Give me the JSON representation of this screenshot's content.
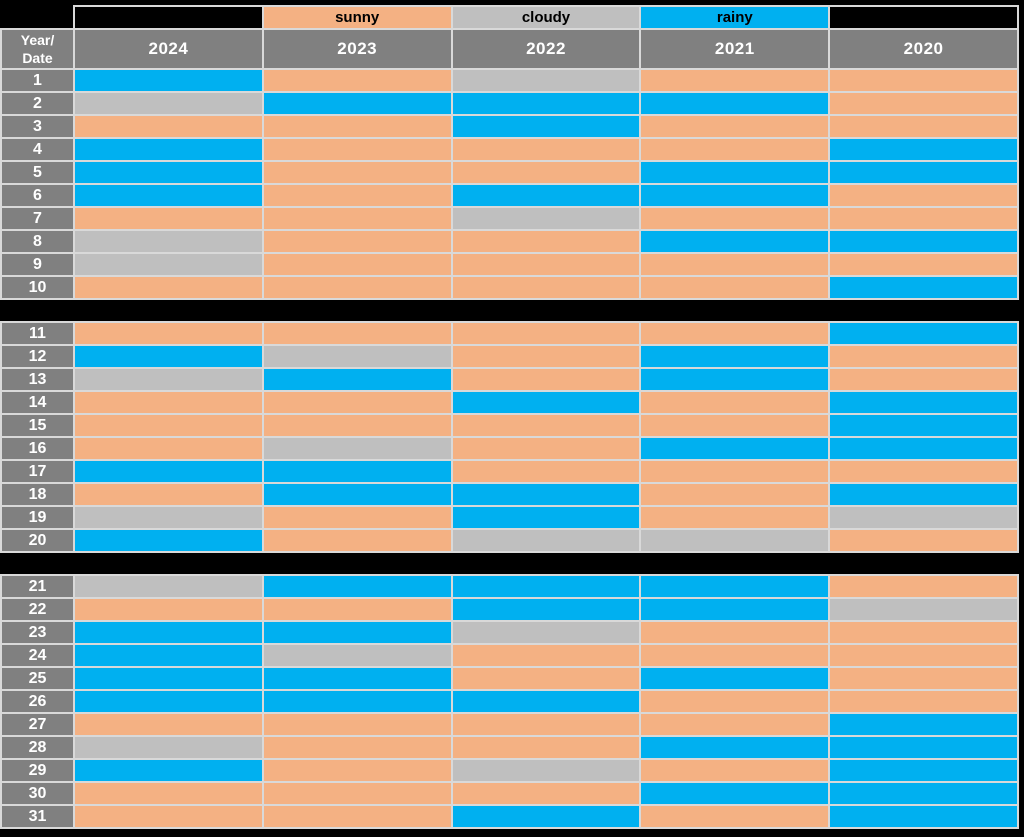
{
  "colors": {
    "sunny": "#F4B183",
    "cloudy": "#BFBFBF",
    "rainy": "#00B0F0",
    "header_bg": "#808080",
    "header_text": "#FFFFFF",
    "page_bg": "#000000",
    "grid_line": "#D9D9D9",
    "legend_text": "#000000",
    "legend_empty_bg": "#000000"
  },
  "table": {
    "corner_label_line1": "Year/",
    "corner_label_line2": "Date"
  },
  "legend": {
    "cells": [
      {
        "label": "",
        "weather": ""
      },
      {
        "label": "sunny",
        "weather": "sunny"
      },
      {
        "label": "cloudy",
        "weather": "cloudy"
      },
      {
        "label": "rainy",
        "weather": "rainy"
      },
      {
        "label": "",
        "weather": ""
      }
    ]
  },
  "chart_data": {
    "type": "heatmap",
    "row_label_header": "Year/Date",
    "columns": [
      "2024",
      "2023",
      "2022",
      "2021",
      "2020"
    ],
    "legend": [
      {
        "label": "sunny",
        "color": "#F4B183"
      },
      {
        "label": "cloudy",
        "color": "#BFBFBF"
      },
      {
        "label": "rainy",
        "color": "#00B0F0"
      }
    ],
    "row_groups": [
      [
        1,
        10
      ],
      [
        11,
        20
      ],
      [
        21,
        31
      ]
    ],
    "rows": [
      {
        "date": "1",
        "values": [
          "rainy",
          "sunny",
          "cloudy",
          "sunny",
          "sunny"
        ]
      },
      {
        "date": "2",
        "values": [
          "cloudy",
          "rainy",
          "rainy",
          "rainy",
          "sunny"
        ]
      },
      {
        "date": "3",
        "values": [
          "sunny",
          "sunny",
          "rainy",
          "sunny",
          "sunny"
        ]
      },
      {
        "date": "4",
        "values": [
          "rainy",
          "sunny",
          "sunny",
          "sunny",
          "rainy"
        ]
      },
      {
        "date": "5",
        "values": [
          "rainy",
          "sunny",
          "sunny",
          "rainy",
          "rainy"
        ]
      },
      {
        "date": "6",
        "values": [
          "rainy",
          "sunny",
          "rainy",
          "rainy",
          "sunny"
        ]
      },
      {
        "date": "7",
        "values": [
          "sunny",
          "sunny",
          "cloudy",
          "sunny",
          "sunny"
        ]
      },
      {
        "date": "8",
        "values": [
          "cloudy",
          "sunny",
          "sunny",
          "rainy",
          "rainy"
        ]
      },
      {
        "date": "9",
        "values": [
          "cloudy",
          "sunny",
          "sunny",
          "sunny",
          "sunny"
        ]
      },
      {
        "date": "10",
        "values": [
          "sunny",
          "sunny",
          "sunny",
          "sunny",
          "rainy"
        ]
      },
      {
        "date": "11",
        "values": [
          "sunny",
          "sunny",
          "sunny",
          "sunny",
          "rainy"
        ]
      },
      {
        "date": "12",
        "values": [
          "rainy",
          "cloudy",
          "sunny",
          "rainy",
          "sunny"
        ]
      },
      {
        "date": "13",
        "values": [
          "cloudy",
          "rainy",
          "sunny",
          "rainy",
          "sunny"
        ]
      },
      {
        "date": "14",
        "values": [
          "sunny",
          "sunny",
          "rainy",
          "sunny",
          "rainy"
        ]
      },
      {
        "date": "15",
        "values": [
          "sunny",
          "sunny",
          "sunny",
          "sunny",
          "rainy"
        ]
      },
      {
        "date": "16",
        "values": [
          "sunny",
          "cloudy",
          "sunny",
          "rainy",
          "rainy"
        ]
      },
      {
        "date": "17",
        "values": [
          "rainy",
          "rainy",
          "sunny",
          "sunny",
          "sunny"
        ]
      },
      {
        "date": "18",
        "values": [
          "sunny",
          "rainy",
          "rainy",
          "sunny",
          "rainy"
        ]
      },
      {
        "date": "19",
        "values": [
          "cloudy",
          "sunny",
          "rainy",
          "sunny",
          "cloudy"
        ]
      },
      {
        "date": "20",
        "values": [
          "rainy",
          "sunny",
          "cloudy",
          "cloudy",
          "sunny"
        ]
      },
      {
        "date": "21",
        "values": [
          "cloudy",
          "rainy",
          "rainy",
          "rainy",
          "sunny"
        ]
      },
      {
        "date": "22",
        "values": [
          "sunny",
          "sunny",
          "rainy",
          "rainy",
          "cloudy"
        ]
      },
      {
        "date": "23",
        "values": [
          "rainy",
          "rainy",
          "cloudy",
          "sunny",
          "sunny"
        ]
      },
      {
        "date": "24",
        "values": [
          "rainy",
          "cloudy",
          "sunny",
          "sunny",
          "sunny"
        ]
      },
      {
        "date": "25",
        "values": [
          "rainy",
          "rainy",
          "sunny",
          "rainy",
          "sunny"
        ]
      },
      {
        "date": "26",
        "values": [
          "rainy",
          "rainy",
          "rainy",
          "sunny",
          "sunny"
        ]
      },
      {
        "date": "27",
        "values": [
          "sunny",
          "sunny",
          "sunny",
          "sunny",
          "rainy"
        ]
      },
      {
        "date": "28",
        "values": [
          "cloudy",
          "sunny",
          "sunny",
          "rainy",
          "rainy"
        ]
      },
      {
        "date": "29",
        "values": [
          "rainy",
          "sunny",
          "cloudy",
          "sunny",
          "rainy"
        ]
      },
      {
        "date": "30",
        "values": [
          "sunny",
          "sunny",
          "sunny",
          "rainy",
          "rainy"
        ]
      },
      {
        "date": "31",
        "values": [
          "sunny",
          "sunny",
          "rainy",
          "sunny",
          "rainy"
        ]
      }
    ]
  }
}
